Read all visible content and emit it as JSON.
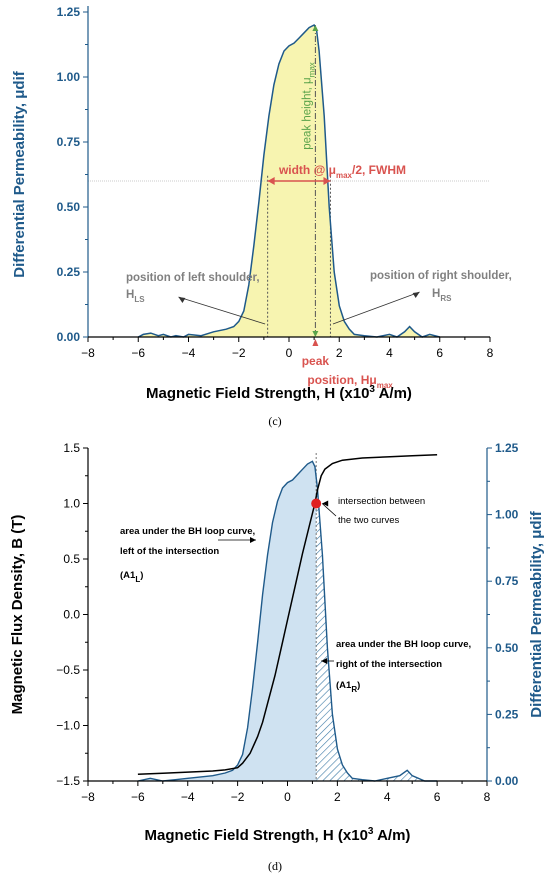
{
  "chart_data": [
    {
      "id": "c",
      "type": "area",
      "caption": "(c)",
      "xlabel": "Magnetic Field Strength, H (x10",
      "xlabel_sup": "3",
      "xlabel_tail": " A/m)",
      "ylabel": "Differential Permeability, μdif",
      "xlim": [
        -8,
        8
      ],
      "ylim": [
        0,
        1.25
      ],
      "xticks": [
        -8,
        -6,
        -4,
        -2,
        0,
        2,
        4,
        6,
        8
      ],
      "yticks": [
        0.0,
        0.25,
        0.5,
        0.75,
        1.0,
        1.25
      ],
      "grid": false,
      "series": [
        {
          "x": [
            -6.0,
            -5.8,
            -5.5,
            -5.2,
            -5.0,
            -4.7,
            -4.5,
            -4.2,
            -4.0,
            -3.5,
            -3.0,
            -2.5,
            -2.2,
            -2.0,
            -1.8,
            -1.6,
            -1.4,
            -1.2,
            -1.0,
            -0.8,
            -0.6,
            -0.4,
            -0.2,
            0.0,
            0.2,
            0.4,
            0.6,
            0.8,
            1.0,
            1.1,
            1.2,
            1.4,
            1.6,
            1.8,
            2.0,
            2.2,
            2.4,
            2.6,
            3.0,
            3.5,
            4.0,
            4.3,
            4.6,
            4.8,
            5.0,
            5.3,
            5.6,
            6.0
          ],
          "y": [
            0.0,
            0.01,
            0.015,
            0.005,
            0.01,
            0.0,
            0.005,
            0.0,
            0.01,
            0.005,
            0.02,
            0.03,
            0.04,
            0.06,
            0.1,
            0.2,
            0.35,
            0.52,
            0.7,
            0.85,
            0.97,
            1.05,
            1.1,
            1.12,
            1.13,
            1.15,
            1.17,
            1.19,
            1.2,
            1.18,
            1.1,
            0.85,
            0.5,
            0.25,
            0.12,
            0.06,
            0.03,
            0.01,
            0.005,
            0.0,
            0.01,
            0.0,
            0.02,
            0.04,
            0.02,
            0.0,
            0.01,
            0.0
          ]
        }
      ],
      "annotations": {
        "peak_height": "peak height, μ",
        "peak_height_sub": "max",
        "width_label": "width @ μ",
        "width_sub": "max",
        "width_tail": "/2, FWHM",
        "left_shoulder_1": "position of left shoulder,",
        "left_shoulder_2": "H",
        "left_shoulder_sub": "LS",
        "right_shoulder_1": "position of right shoulder,",
        "right_shoulder_2": "H",
        "right_shoulder_sub": "RS",
        "peak_1": "peak",
        "peak_2": "position, Hμ",
        "peak_2_sub": "max"
      },
      "colors": {
        "fill": "#f7f4b0",
        "line": "#1f5a8a",
        "axis": "#1f5a8a",
        "red": "#d9534f",
        "green": "#5aa34a",
        "gray": "#808080"
      }
    },
    {
      "id": "d",
      "type": "line",
      "caption": "(d)",
      "xlabel": "Magnetic Field Strength, H (x10",
      "xlabel_sup": "3",
      "xlabel_tail": " A/m)",
      "ylabel_left": "Magnetic Flux Density, B (T)",
      "ylabel_right": "Differential Permeability, μdif",
      "xlim": [
        -8,
        8
      ],
      "ylim_left": [
        -1.5,
        1.5
      ],
      "ylim_right": [
        0,
        1.25
      ],
      "xticks": [
        -8,
        -6,
        -4,
        -2,
        0,
        2,
        4,
        6,
        8
      ],
      "yticks_left": [
        -1.5,
        -1.0,
        -0.5,
        0.0,
        0.5,
        1.0,
        1.5
      ],
      "yticks_right": [
        0.0,
        0.25,
        0.5,
        0.75,
        1.0,
        1.25
      ],
      "grid": false,
      "series": [
        {
          "axis": "left",
          "x": [
            -6.0,
            -5.0,
            -4.0,
            -3.0,
            -2.5,
            -2.0,
            -1.8,
            -1.5,
            -1.2,
            -1.0,
            -0.8,
            -0.5,
            -0.2,
            0.0,
            0.3,
            0.6,
            0.9,
            1.1,
            1.2,
            1.35,
            1.5,
            1.8,
            2.2,
            3.0,
            4.0,
            5.0,
            6.0
          ],
          "y": [
            -1.44,
            -1.43,
            -1.42,
            -1.41,
            -1.4,
            -1.38,
            -1.34,
            -1.25,
            -1.1,
            -0.97,
            -0.8,
            -0.55,
            -0.25,
            -0.05,
            0.25,
            0.55,
            0.82,
            1.0,
            1.12,
            1.25,
            1.31,
            1.36,
            1.39,
            1.41,
            1.42,
            1.43,
            1.44
          ]
        },
        {
          "axis": "right",
          "x": [
            -6.0,
            -5.5,
            -5.0,
            -4.5,
            -4.0,
            -3.0,
            -2.5,
            -2.2,
            -2.0,
            -1.8,
            -1.6,
            -1.4,
            -1.2,
            -1.0,
            -0.8,
            -0.6,
            -0.4,
            -0.2,
            0.0,
            0.2,
            0.4,
            0.6,
            0.8,
            1.0,
            1.1,
            1.2,
            1.4,
            1.6,
            1.8,
            2.0,
            2.2,
            2.4,
            2.6,
            3.0,
            3.5,
            4.0,
            4.5,
            4.8,
            5.0,
            5.5,
            6.0
          ],
          "y": [
            0.0,
            0.01,
            0.0,
            0.005,
            0.01,
            0.02,
            0.03,
            0.04,
            0.06,
            0.1,
            0.2,
            0.35,
            0.52,
            0.7,
            0.85,
            0.97,
            1.05,
            1.1,
            1.12,
            1.13,
            1.15,
            1.17,
            1.19,
            1.2,
            1.18,
            1.1,
            0.85,
            0.5,
            0.25,
            0.12,
            0.06,
            0.03,
            0.01,
            0.005,
            0.0,
            0.01,
            0.02,
            0.04,
            0.02,
            0.0,
            0.0
          ]
        }
      ],
      "intersection": {
        "x": 1.15,
        "y_left": 1.0
      },
      "annotations": {
        "inter_1": "intersection between",
        "inter_2": "the two curves",
        "left_area_1": "area under the BH loop curve,",
        "left_area_2": "left of the intersection",
        "left_area_3": "(A1",
        "left_area_sub": "L",
        "left_area_tail": ")",
        "right_area_1": "area under the BH loop curve,",
        "right_area_2": "right of the intersection",
        "right_area_3": "(A1",
        "right_area_sub": "R",
        "right_area_tail": ")"
      },
      "colors": {
        "fill": "#cfe2f1",
        "line_bh": "#000000",
        "line_perm": "#1f5a8a",
        "axis_right": "#1f5a8a",
        "point": "#e02020"
      }
    }
  ]
}
